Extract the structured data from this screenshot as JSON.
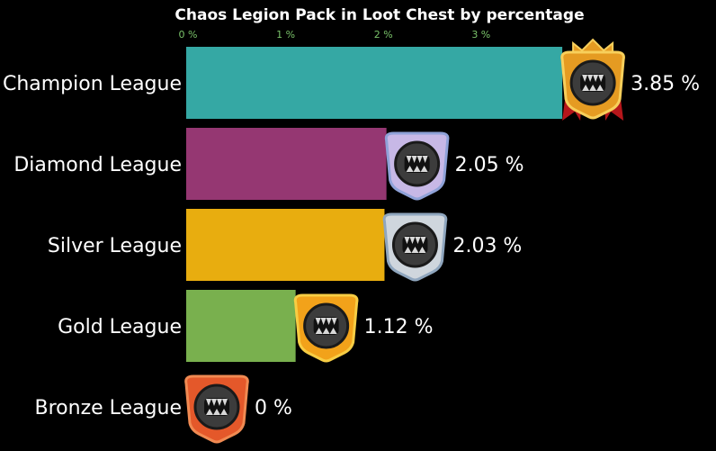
{
  "chart_data": {
    "type": "bar",
    "orientation": "horizontal",
    "title": "Chaos Legion Pack in Loot Chest by percentage",
    "categories": [
      "Champion League",
      "Diamond League",
      "Silver League",
      "Gold League",
      "Bronze League"
    ],
    "values": [
      3.85,
      2.05,
      2.03,
      1.12,
      0
    ],
    "value_labels": [
      "3.85 %",
      "2.05 %",
      "2.03 %",
      "1.12 %",
      "0 %"
    ],
    "bar_colors": [
      "#35a8a4",
      "#953772",
      "#e8ad0f",
      "#79b04e",
      "#000000"
    ],
    "badge_colors": [
      {
        "rim": "#e59b22",
        "rim2": "#f7cf5b",
        "ribbon": "#b5161b",
        "crown": true
      },
      {
        "rim": "#c7b8e6",
        "rim2": "#8fa2d8",
        "ribbon": null,
        "crown": false
      },
      {
        "rim": "#cfd6dd",
        "rim2": "#8fa6be",
        "ribbon": null,
        "crown": false
      },
      {
        "rim": "#f2a21a",
        "rim2": "#f7cd44",
        "ribbon": null,
        "crown": false
      },
      {
        "rim": "#e4582a",
        "rim2": "#f08a52",
        "ribbon": null,
        "crown": false
      }
    ],
    "badge_icon": "monster-mouth-shield-icon",
    "xticks": [
      0,
      1,
      2,
      3
    ],
    "xtick_labels": [
      "0 %",
      "1 %",
      "2 %",
      "3 %"
    ],
    "xlim": [
      0,
      3.85
    ],
    "xlabel": "",
    "ylabel": "",
    "grid": false,
    "colors": {
      "background": "#000000",
      "text": "#ffffff",
      "tick_text": "#7ac36a"
    }
  }
}
